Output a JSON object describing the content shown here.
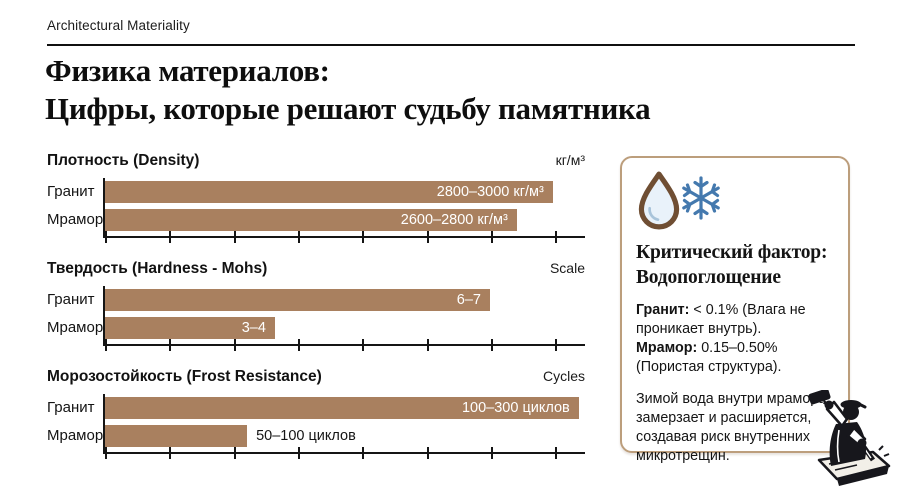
{
  "header": {
    "eyebrow": "Architectural Materiality",
    "title_line1": "Физика материалов:",
    "title_line2": "Цифры, которые решают судьбу памятника"
  },
  "colors": {
    "bar": "#A9805F",
    "axis": "#151515",
    "card_border": "#BC9E7C",
    "droplet_brown": "#6F4E33",
    "snowflake_blue": "#4479AE"
  },
  "chart_data": [
    {
      "type": "bar",
      "id": "density",
      "title": "Плотность (Density)",
      "unit_label": "кг/м³",
      "categories": [
        "Гранит",
        "Мрамор"
      ],
      "values": [
        [
          2800,
          3000
        ],
        [
          2600,
          2800
        ]
      ],
      "bar_labels": [
        "2800–3000 кг/м³",
        "2600–2800 кг/м³"
      ],
      "bar_pct": [
        93.3,
        85.8
      ],
      "label_inside": [
        true,
        true
      ],
      "ticks": 8,
      "legend": "none",
      "grid": false
    },
    {
      "type": "bar",
      "id": "hardness",
      "title": "Твердость (Hardness - Mohs)",
      "unit_label": "Scale",
      "categories": [
        "Гранит",
        "Мрамор"
      ],
      "values": [
        [
          6,
          7
        ],
        [
          3,
          4
        ]
      ],
      "bar_labels": [
        "6–7",
        "3–4"
      ],
      "bar_pct": [
        80.2,
        35.4
      ],
      "label_inside": [
        true,
        true
      ],
      "ticks": 8,
      "legend": "none",
      "grid": false
    },
    {
      "type": "bar",
      "id": "frost-resistance",
      "title": "Морозостойкость (Frost Resistance)",
      "unit_label": "Cycles",
      "categories": [
        "Гранит",
        "Мрамор"
      ],
      "values": [
        [
          100,
          300
        ],
        [
          50,
          100
        ]
      ],
      "bar_labels": [
        "100–300 циклов",
        "50–100 циклов"
      ],
      "bar_pct": [
        98.7,
        29.6
      ],
      "label_inside": [
        true,
        false
      ],
      "ticks": 8,
      "legend": "none",
      "grid": false
    }
  ],
  "card": {
    "icons": [
      "water-drop-icon",
      "snowflake-icon"
    ],
    "title_line1": "Критический фактор:",
    "title_line2": "Водопоглощение",
    "granite_label": "Гранит:",
    "granite_text": "< 0.1% (Влага не проникает внутрь).",
    "marble_label": "Мрамор:",
    "marble_text": "0.15–0.50% (Пористая структура).",
    "note": "Зимой вода внутри мрамора замерзает и расширяется, создавая риск внутренних микротрещин."
  },
  "illustration": "stonemason-carving-stone"
}
